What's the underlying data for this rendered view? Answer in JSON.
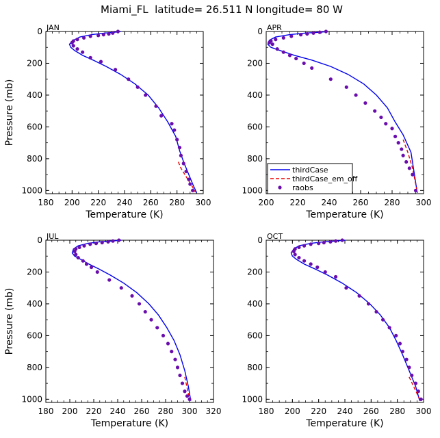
{
  "title": "Miami_FL  latitude= 26.511 N longitude= 80 W",
  "chart_data": [
    {
      "type": "line",
      "panel_label": "JAN",
      "xlabel": "Temperature (K)",
      "ylabel": "Pressure (mb)",
      "xlim": [
        180,
        300
      ],
      "ylim": [
        0,
        1020
      ],
      "y_inverted": true,
      "xticks": [
        180,
        200,
        220,
        240,
        260,
        280,
        300
      ],
      "yticks": [
        0,
        200,
        400,
        600,
        800,
        1000
      ],
      "series": [
        {
          "name": "thirdCase",
          "style": "solid",
          "color": "#0000ee",
          "x": [
            237,
            232,
            225,
            215,
            206,
            201,
            198,
            199,
            202,
            208,
            216,
            226,
            237,
            248,
            258,
            266,
            273,
            279,
            282,
            285,
            289,
            292,
            295
          ],
          "y": [
            0,
            5,
            10,
            20,
            35,
            55,
            80,
            100,
            120,
            150,
            180,
            220,
            270,
            330,
            400,
            480,
            570,
            660,
            750,
            820,
            900,
            960,
            1015
          ]
        },
        {
          "name": "thirdCase_em_off",
          "style": "dashed",
          "color": "#ee0000",
          "x": [
            281,
            283,
            286,
            289,
            292,
            294
          ],
          "y": [
            820,
            860,
            900,
            940,
            980,
            1010
          ]
        },
        {
          "name": "raobs",
          "style": "dots",
          "color": "#6a0dad",
          "x": [
            235,
            231,
            228,
            224,
            220,
            214,
            209,
            204,
            201,
            200,
            201,
            204,
            208,
            214,
            222,
            233,
            243,
            250,
            256,
            264,
            268,
            276,
            278,
            280,
            282,
            283,
            285,
            287,
            289,
            290,
            292
          ],
          "y": [
            0,
            10,
            15,
            20,
            25,
            30,
            40,
            50,
            60,
            70,
            90,
            110,
            130,
            165,
            190,
            240,
            300,
            350,
            400,
            470,
            530,
            580,
            620,
            680,
            730,
            780,
            830,
            880,
            930,
            960,
            1000
          ]
        }
      ]
    },
    {
      "type": "line",
      "panel_label": "APR",
      "xlabel": "Temperature (K)",
      "ylabel": "",
      "xlim": [
        200,
        300
      ],
      "ylim": [
        0,
        1020
      ],
      "y_inverted": true,
      "xticks": [
        200,
        220,
        240,
        260,
        280,
        300
      ],
      "yticks": [
        0,
        200,
        400,
        600,
        800,
        1000
      ],
      "series": [
        {
          "name": "thirdCase",
          "style": "solid",
          "color": "#0000ee",
          "x": [
            239,
            234,
            225,
            215,
            206,
            202,
            201,
            203,
            209,
            218,
            229,
            241,
            252,
            262,
            270,
            277,
            282,
            287,
            292,
            296
          ],
          "y": [
            0,
            5,
            10,
            20,
            35,
            55,
            80,
            100,
            120,
            150,
            180,
            220,
            270,
            330,
            400,
            480,
            570,
            650,
            760,
            1015
          ]
        },
        {
          "name": "thirdCase_em_off",
          "style": "dashed",
          "color": "#ee0000",
          "x": [
            287,
            290,
            293,
            296
          ],
          "y": [
            680,
            760,
            860,
            1010
          ]
        },
        {
          "name": "raobs",
          "style": "dots",
          "color": "#6a0dad",
          "x": [
            238,
            234,
            230,
            226,
            222,
            216,
            211,
            206,
            203,
            202,
            204,
            207,
            211,
            215,
            219,
            224,
            229,
            241,
            251,
            257,
            263,
            269,
            273,
            276,
            280,
            282,
            284,
            286,
            287,
            289,
            291,
            293,
            295
          ],
          "y": [
            0,
            5,
            10,
            15,
            20,
            30,
            40,
            50,
            60,
            70,
            80,
            110,
            130,
            150,
            170,
            200,
            230,
            300,
            350,
            400,
            450,
            500,
            540,
            580,
            610,
            660,
            700,
            740,
            780,
            820,
            860,
            900,
            1000
          ]
        }
      ]
    },
    {
      "type": "line",
      "panel_label": "JUL",
      "xlabel": "Temperature (K)",
      "ylabel": "Pressure (mb)",
      "xlim": [
        180,
        320
      ],
      "ylim": [
        0,
        1020
      ],
      "y_inverted": true,
      "xticks": [
        180,
        200,
        220,
        240,
        260,
        280,
        300,
        320
      ],
      "yticks": [
        0,
        200,
        400,
        600,
        800,
        1000
      ],
      "series": [
        {
          "name": "thirdCase",
          "style": "solid",
          "color": "#0000ee",
          "x": [
            243,
            235,
            225,
            215,
            207,
            203,
            202,
            204,
            209,
            216,
            224,
            234,
            245,
            256,
            266,
            274,
            281,
            287,
            292,
            296,
            299,
            301
          ],
          "y": [
            0,
            5,
            10,
            20,
            35,
            55,
            80,
            100,
            120,
            150,
            180,
            220,
            270,
            330,
            400,
            470,
            550,
            630,
            720,
            820,
            920,
            1010
          ]
        },
        {
          "name": "thirdCase_em_off",
          "style": "dashed",
          "color": "#ee0000",
          "x": [
            296,
            298,
            300
          ],
          "y": [
            860,
            930,
            1000
          ]
        },
        {
          "name": "raobs",
          "style": "dots",
          "color": "#6a0dad",
          "x": [
            241,
            236,
            232,
            227,
            222,
            217,
            212,
            208,
            205,
            204,
            205,
            207,
            211,
            214,
            218,
            223,
            233,
            243,
            252,
            258,
            263,
            268,
            273,
            278,
            282,
            285,
            288,
            290,
            292,
            294,
            296,
            298,
            300
          ],
          "y": [
            0,
            5,
            10,
            15,
            20,
            25,
            35,
            45,
            55,
            70,
            90,
            110,
            130,
            150,
            170,
            200,
            250,
            300,
            350,
            400,
            450,
            500,
            550,
            600,
            650,
            700,
            750,
            800,
            850,
            900,
            950,
            980,
            1000
          ]
        }
      ]
    },
    {
      "type": "line",
      "panel_label": "OCT",
      "xlabel": "Temperature (K)",
      "ylabel": "",
      "xlim": [
        180,
        300
      ],
      "ylim": [
        0,
        1020
      ],
      "y_inverted": true,
      "xticks": [
        180,
        200,
        220,
        240,
        260,
        280,
        300
      ],
      "yticks": [
        0,
        200,
        400,
        600,
        800,
        1000
      ],
      "series": [
        {
          "name": "thirdCase",
          "style": "solid",
          "color": "#0000ee",
          "x": [
            240,
            233,
            224,
            214,
            205,
            201,
            199,
            200,
            203,
            209,
            217,
            227,
            238,
            249,
            259,
            267,
            274,
            279,
            284,
            289,
            294,
            297
          ],
          "y": [
            0,
            5,
            10,
            20,
            35,
            55,
            80,
            100,
            120,
            150,
            180,
            220,
            270,
            330,
            400,
            470,
            550,
            630,
            720,
            820,
            920,
            1010
          ]
        },
        {
          "name": "thirdCase_em_off",
          "style": "dashed",
          "color": "#ee0000",
          "x": [
            289,
            293,
            297
          ],
          "y": [
            860,
            930,
            1000
          ]
        },
        {
          "name": "raobs",
          "style": "dots",
          "color": "#6a0dad",
          "x": [
            238,
            233,
            229,
            224,
            220,
            214,
            209,
            205,
            202,
            201,
            202,
            205,
            209,
            214,
            219,
            225,
            233,
            241,
            251,
            258,
            264,
            269,
            274,
            279,
            282,
            284,
            287,
            289,
            291,
            294,
            296,
            298
          ],
          "y": [
            0,
            5,
            10,
            15,
            20,
            25,
            35,
            45,
            55,
            70,
            90,
            110,
            130,
            150,
            170,
            200,
            230,
            300,
            350,
            400,
            450,
            500,
            550,
            600,
            650,
            700,
            750,
            800,
            850,
            900,
            950,
            1000
          ]
        }
      ]
    }
  ]
}
